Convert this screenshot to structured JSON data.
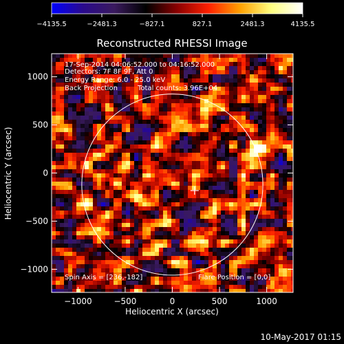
{
  "chart_data": {
    "type": "heatmap",
    "title": "Reconstructed RHESSI Image",
    "xlabel": "Heliocentric X (arcsec)",
    "ylabel": "Heliocentric Y (arcsec)",
    "xlim": [
      -1280,
      1280
    ],
    "ylim": [
      -1240,
      1240
    ],
    "x_ticks": [
      -1000,
      -500,
      0,
      500,
      1000
    ],
    "y_ticks": [
      -1000,
      -500,
      0,
      500,
      1000
    ],
    "colorbar": {
      "range": [
        -4135.5,
        4135.5
      ],
      "tick_labels": [
        "−4135.5",
        "−2481.3",
        "−827.1",
        "827.1",
        "2481.3",
        "4135.5"
      ],
      "stops": [
        "#0000ff",
        "#2a0a8c",
        "#3a1a5e",
        "#000000",
        "#8a0000",
        "#ff2000",
        "#ffa000",
        "#ffff80",
        "#ffffff"
      ]
    },
    "annotations": {
      "time_range": "17-Sep-2014 04:06:52.000 to 04:16:52.000",
      "detectors": "Detectors: 7F 8F 9F, Att 0",
      "energy": "Energy Range: 6.0 - 25.0 keV",
      "method": "Back Projection",
      "counts": "Total counts: 3.96E+04",
      "spin_axis": "Spin Axis = [236,-182]",
      "flare_position": "Flare Position = [0,0]"
    },
    "solar_disk": {
      "center": [
        0,
        -120
      ],
      "radius": 960
    },
    "marker": {
      "x": 236,
      "y": -182,
      "symbol": "+"
    },
    "bright_sources": [
      {
        "x": 930,
        "y": 250,
        "value": 4000
      },
      {
        "x": 560,
        "y": -320,
        "value": 3800
      },
      {
        "x": -980,
        "y": 50,
        "value": 3200
      },
      {
        "x": -550,
        "y": -10,
        "value": 2600
      },
      {
        "x": -900,
        "y": -330,
        "value": 2300
      },
      {
        "x": 190,
        "y": -220,
        "value": 2400
      },
      {
        "x": 900,
        "y": 900,
        "value": 2000
      },
      {
        "x": -350,
        "y": -300,
        "value": 2200
      }
    ]
  },
  "footer": {
    "timestamp": "10-May-2017 01:15"
  }
}
